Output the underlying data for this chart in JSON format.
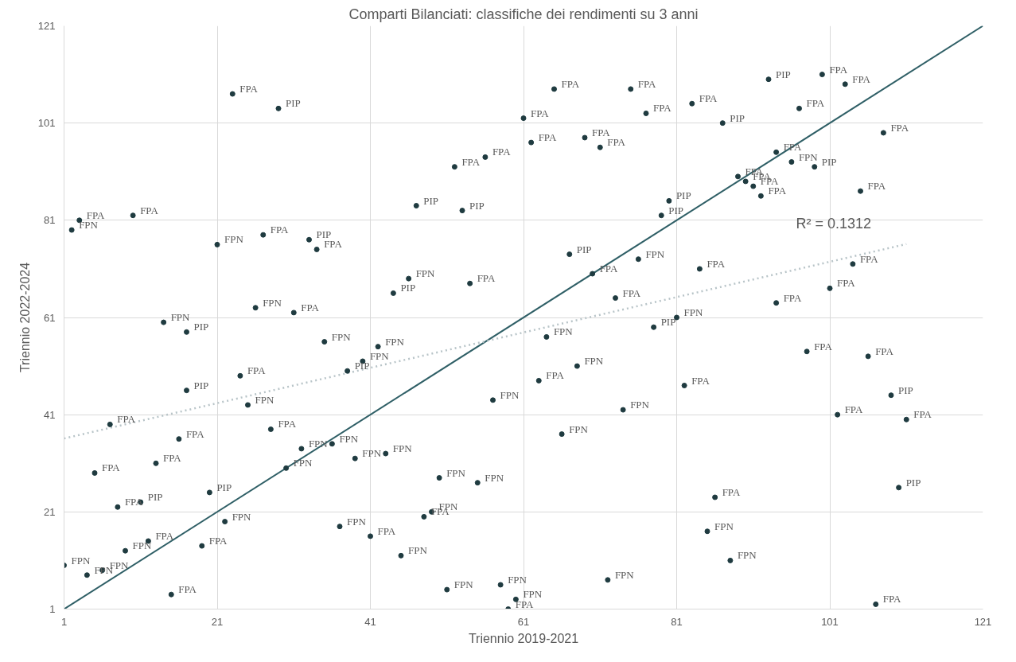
{
  "chart_data": {
    "type": "scatter",
    "title": "Comparti Bilanciati: classifiche dei rendimenti su 3 anni",
    "xlabel": "Triennio 2019-2021",
    "ylabel": "Triennio 2022-2024",
    "xlim": [
      1,
      121
    ],
    "ylim": [
      1,
      121
    ],
    "xticks": [
      1,
      21,
      41,
      61,
      81,
      101,
      121
    ],
    "yticks": [
      1,
      21,
      41,
      61,
      81,
      101,
      121
    ],
    "grid": true,
    "marker": "circle",
    "annotations": [
      "R² = 0.1312"
    ],
    "series": [
      {
        "name": "FPA",
        "color": "#1f3b40",
        "x": [
          23,
          65,
          75,
          83,
          100,
          103,
          61,
          77,
          97,
          62,
          69,
          71,
          108,
          56,
          52,
          94,
          89,
          90,
          91,
          92,
          105,
          10,
          3,
          27,
          34,
          70,
          84,
          104,
          101,
          54,
          73,
          94,
          31,
          98,
          106,
          24,
          63,
          82,
          7,
          102,
          111,
          28,
          16,
          5,
          13,
          86,
          8,
          41,
          48,
          19,
          12,
          15,
          59,
          107
        ],
        "values": [
          107,
          108,
          108,
          105,
          111,
          109,
          102,
          103,
          104,
          97,
          98,
          96,
          99,
          94,
          92,
          95,
          90,
          89,
          88,
          86,
          87,
          82,
          81,
          78,
          75,
          70,
          71,
          72,
          67,
          68,
          65,
          64,
          62,
          54,
          53,
          49,
          48,
          47,
          39,
          41,
          40,
          38,
          36,
          29,
          31,
          24,
          22,
          16,
          20,
          14,
          15,
          4,
          1,
          2
        ]
      },
      {
        "name": "FPN",
        "color": "#1f3b40",
        "x": [
          96,
          2,
          21,
          76,
          46,
          26,
          14,
          81,
          35,
          64,
          42,
          40,
          68,
          57,
          25,
          74,
          66,
          32,
          36,
          39,
          43,
          30,
          50,
          55,
          22,
          37,
          49,
          85,
          9,
          45,
          88,
          1,
          4,
          6,
          72,
          51,
          58,
          60
        ],
        "values": [
          93,
          79,
          76,
          73,
          69,
          63,
          60,
          61,
          56,
          57,
          55,
          52,
          51,
          44,
          43,
          42,
          37,
          34,
          35,
          32,
          33,
          30,
          28,
          27,
          19,
          18,
          21,
          17,
          13,
          12,
          11,
          10,
          8,
          9,
          7,
          5,
          6,
          3
        ]
      },
      {
        "name": "PIP",
        "color": "#1f3b40",
        "x": [
          29,
          93,
          87,
          99,
          80,
          79,
          47,
          53,
          33,
          67,
          44,
          78,
          17,
          38,
          17,
          109,
          20,
          110,
          11
        ],
        "values": [
          104,
          110,
          101,
          92,
          85,
          82,
          84,
          83,
          77,
          74,
          66,
          59,
          58,
          50,
          46,
          45,
          25,
          26,
          23
        ]
      },
      {
        "type": "line",
        "color": "#2f5f66",
        "line_style": "solid",
        "marker": "none",
        "x": [
          1,
          121
        ],
        "values": [
          1,
          121
        ]
      },
      {
        "type": "line",
        "color": "#b8c4c8",
        "line_style": "dotted",
        "marker": "none",
        "x": [
          1,
          111
        ],
        "values": [
          36.1,
          76.1
        ]
      }
    ]
  }
}
